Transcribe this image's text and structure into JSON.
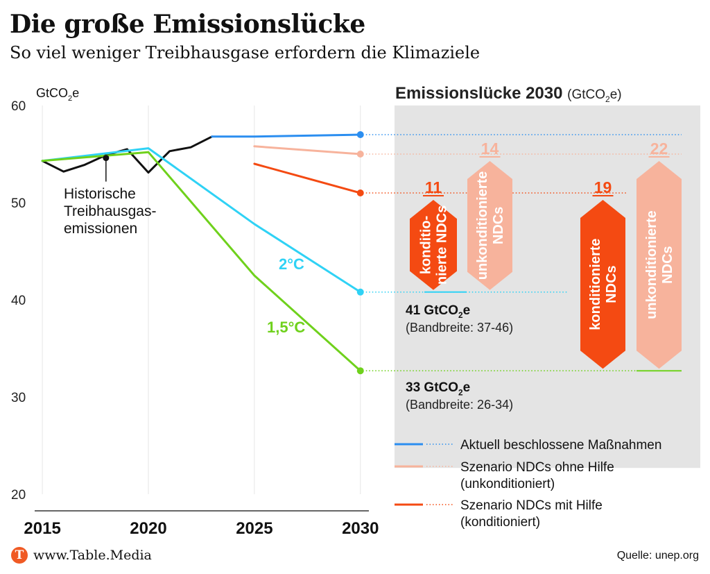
{
  "header": {
    "title": "Die große Emissionslücke",
    "subtitle": "So viel weniger Treibhausgase erfordern die Klimaziele"
  },
  "footer": {
    "site": "www.Table.Media",
    "source": "Quelle: unep.org"
  },
  "colors": {
    "historic": "#111111",
    "current": "#2b8ef0",
    "unconditional": "#f7b39c",
    "conditional": "#f44a12",
    "two_degree": "#2fd2f5",
    "one_five": "#6fd11c",
    "panel": "#e4e4e4",
    "grid": "#e6e6e6"
  },
  "chart_data": [
    {
      "type": "line",
      "ylabel_base": "GtCO",
      "ylabel_sub": "2",
      "ylabel_tail": "e",
      "ylim": [
        20,
        60
      ],
      "yticks": [
        20,
        30,
        40,
        50,
        60
      ],
      "xlim": [
        2014.8,
        2030.4
      ],
      "xticks": [
        2015,
        2020,
        2025,
        2030
      ],
      "grid": "vertical",
      "series": [
        {
          "key": "historic",
          "color": "#111111",
          "width": 3,
          "points": [
            [
              2015,
              54.3
            ],
            [
              2016,
              53.2
            ],
            [
              2017,
              53.9
            ],
            [
              2018,
              54.9
            ],
            [
              2019,
              55.5
            ],
            [
              2020,
              53.1
            ],
            [
              2021,
              55.3
            ],
            [
              2022,
              55.7
            ],
            [
              2023,
              56.8
            ]
          ]
        },
        {
          "key": "current",
          "color": "#2b8ef0",
          "width": 3,
          "points": [
            [
              2023,
              56.8
            ],
            [
              2025,
              56.8
            ],
            [
              2030,
              57.0
            ]
          ]
        },
        {
          "key": "unconditional",
          "color": "#f7b39c",
          "width": 3,
          "points": [
            [
              2025,
              55.8
            ],
            [
              2030,
              55.0
            ]
          ]
        },
        {
          "key": "conditional",
          "color": "#f44a12",
          "width": 3,
          "points": [
            [
              2025,
              54.0
            ],
            [
              2030,
              51.0
            ]
          ]
        },
        {
          "key": "two_degree",
          "color": "#2fd2f5",
          "width": 3,
          "points": [
            [
              2015,
              54.3
            ],
            [
              2020,
              55.6
            ],
            [
              2025,
              47.8
            ],
            [
              2030,
              40.8
            ]
          ]
        },
        {
          "key": "one_five",
          "color": "#6fd11c",
          "width": 3,
          "points": [
            [
              2015,
              54.3
            ],
            [
              2020,
              55.2
            ],
            [
              2025,
              42.5
            ],
            [
              2030,
              32.7
            ]
          ]
        }
      ],
      "endpoints": [
        {
          "key": "current",
          "value": 57.0,
          "color": "#2b8ef0"
        },
        {
          "key": "unconditional",
          "value": 55.0,
          "color": "#f7b39c"
        },
        {
          "key": "conditional",
          "value": 51.0,
          "color": "#f44a12"
        },
        {
          "key": "two_degree",
          "value": 40.8,
          "color": "#2fd2f5"
        },
        {
          "key": "one_five",
          "value": 32.7,
          "color": "#6fd11c"
        }
      ],
      "annotations": {
        "historic_lines": [
          "Historische",
          "Treibhausgas-",
          "emissionen"
        ],
        "historic_point": [
          2018,
          54.6
        ],
        "two_degree": "2°C",
        "one_five": "1,5°C"
      }
    },
    {
      "type": "bar",
      "title": "Emissionslücke 2030",
      "unit_base": "(GtCO",
      "unit_sub": "2",
      "unit_tail": "e)",
      "bars": [
        {
          "value": 11,
          "from": 51.0,
          "to": 40.8,
          "target": "2°C",
          "label_lines": [
            "konditio-",
            "nierte NDCs"
          ],
          "color": "#f44a12",
          "value_color": "#f44a12"
        },
        {
          "value": 14,
          "from": 55.0,
          "to": 40.8,
          "target": "2°C",
          "label_lines": [
            "unkonditionierte",
            "NDCs"
          ],
          "color": "#f7b39c",
          "value_color": "#f7b39c"
        },
        {
          "value": 19,
          "from": 51.0,
          "to": 32.7,
          "target": "1,5°C",
          "label_lines": [
            "konditionierte",
            "NDCs"
          ],
          "color": "#f44a12",
          "value_color": "#f44a12"
        },
        {
          "value": 22,
          "from": 55.0,
          "to": 32.7,
          "target": "1,5°C",
          "label_lines": [
            "unkonditionierte",
            "NDCs"
          ],
          "color": "#f7b39c",
          "value_color": "#f7b39c"
        }
      ],
      "targets": [
        {
          "value_base": "41 GtCO",
          "value_sub": "2",
          "value_tail": "e",
          "range": "(Bandbreite: 37-46)"
        },
        {
          "value_base": "33 GtCO",
          "value_sub": "2",
          "value_tail": "e",
          "range": "(Bandbreite: 26-34)"
        }
      ]
    }
  ],
  "legend": [
    {
      "key": "current",
      "color": "#2b8ef0",
      "lines": [
        "Aktuell beschlossene Maßnahmen"
      ]
    },
    {
      "key": "unconditional",
      "color": "#f7b39c",
      "lines": [
        "Szenario NDCs ohne Hilfe",
        "(unkonditioniert)"
      ]
    },
    {
      "key": "conditional",
      "color": "#f44a12",
      "lines": [
        "Szenario NDCs mit Hilfe",
        "(konditioniert)"
      ]
    }
  ]
}
